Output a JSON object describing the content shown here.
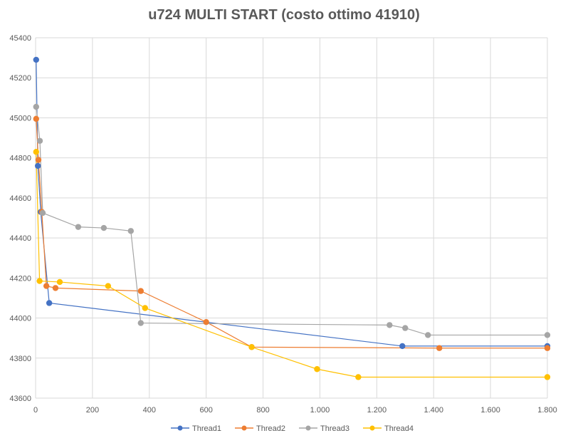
{
  "chart_data": {
    "type": "scatter",
    "title": "u724 MULTI START (costo ottimo 41910)",
    "xlabel": "",
    "ylabel": "",
    "xlim": [
      0,
      1800
    ],
    "ylim": [
      43600,
      45400
    ],
    "x_ticks": [
      0,
      200,
      400,
      600,
      800,
      1000,
      1200,
      1400,
      1600,
      1800
    ],
    "x_tick_labels": [
      "0",
      "200",
      "400",
      "600",
      "800",
      "1.000",
      "1.200",
      "1.400",
      "1.600",
      "1.800"
    ],
    "y_ticks": [
      43600,
      43800,
      44000,
      44200,
      44400,
      44600,
      44800,
      45000,
      45200,
      45400
    ],
    "y_tick_labels": [
      "43600",
      "43800",
      "44000",
      "44200",
      "44400",
      "44600",
      "44800",
      "45000",
      "45200",
      "45400"
    ],
    "grid": true,
    "legend_position": "bottom",
    "series": [
      {
        "name": "Thread1",
        "color": "#4472C4",
        "points": [
          [
            2,
            45290
          ],
          [
            8,
            44760
          ],
          [
            18,
            44530
          ],
          [
            48,
            44075
          ],
          [
            1290,
            43860
          ],
          [
            1800,
            43860
          ]
        ]
      },
      {
        "name": "Thread2",
        "color": "#ED7D31",
        "points": [
          [
            2,
            44995
          ],
          [
            10,
            44790
          ],
          [
            22,
            44530
          ],
          [
            38,
            44160
          ],
          [
            70,
            44150
          ],
          [
            370,
            44135
          ],
          [
            600,
            43980
          ],
          [
            760,
            43855
          ],
          [
            1420,
            43850
          ],
          [
            1800,
            43850
          ]
        ]
      },
      {
        "name": "Thread3",
        "color": "#A5A5A5",
        "points": [
          [
            2,
            45055
          ],
          [
            15,
            44885
          ],
          [
            25,
            44525
          ],
          [
            150,
            44455
          ],
          [
            240,
            44450
          ],
          [
            335,
            44435
          ],
          [
            370,
            43975
          ],
          [
            1245,
            43965
          ],
          [
            1300,
            43950
          ],
          [
            1380,
            43915
          ],
          [
            1800,
            43915
          ]
        ]
      },
      {
        "name": "Thread4",
        "color": "#FFC000",
        "points": [
          [
            2,
            44830
          ],
          [
            14,
            44185
          ],
          [
            85,
            44180
          ],
          [
            255,
            44160
          ],
          [
            385,
            44050
          ],
          [
            760,
            43855
          ],
          [
            990,
            43745
          ],
          [
            1135,
            43705
          ],
          [
            1800,
            43705
          ]
        ]
      }
    ]
  }
}
